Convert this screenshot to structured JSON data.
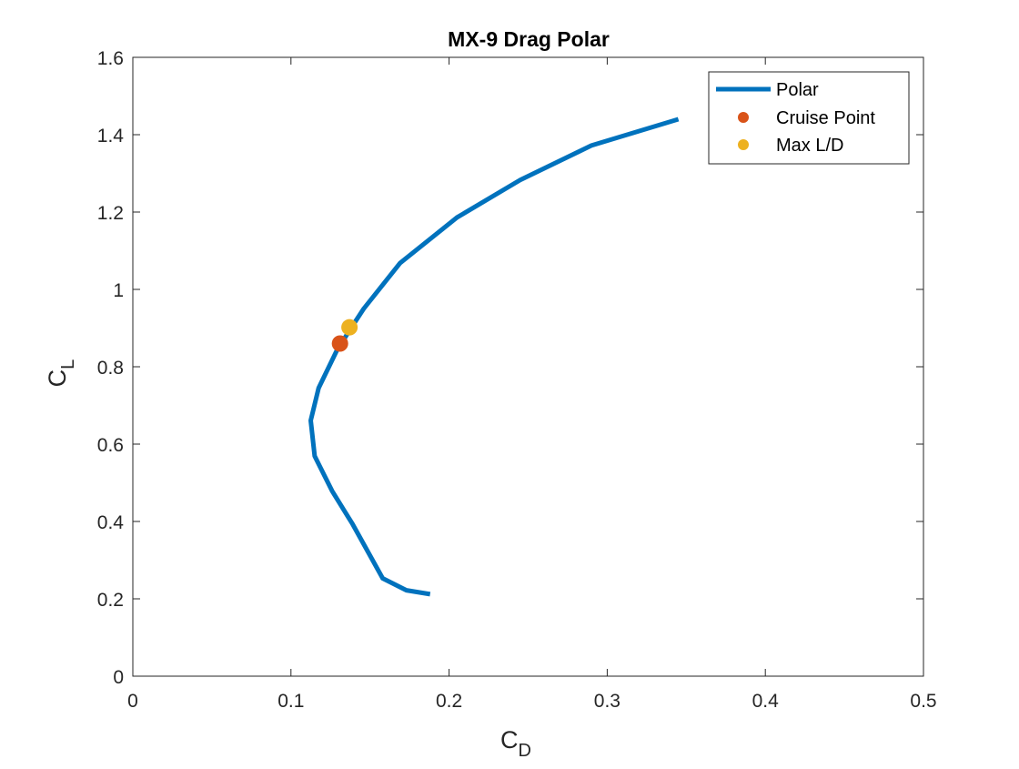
{
  "chart_data": {
    "type": "line",
    "title": "MX-9 Drag Polar",
    "xlabel": {
      "main": "C",
      "sub": "D"
    },
    "ylabel": {
      "main": "C",
      "sub": "L"
    },
    "xlim": [
      0,
      0.5
    ],
    "ylim": [
      0,
      1.6
    ],
    "xticks": [
      0,
      0.1,
      0.2,
      0.3,
      0.4,
      0.5
    ],
    "xtick_labels": [
      "0",
      "0.1",
      "0.2",
      "0.3",
      "0.4",
      "0.5"
    ],
    "yticks": [
      0,
      0.2,
      0.4,
      0.6,
      0.8,
      1.0,
      1.2,
      1.4,
      1.6
    ],
    "ytick_labels": [
      "0",
      "0.2",
      "0.4",
      "0.6",
      "0.8",
      "1",
      "1.2",
      "1.4",
      "1.6"
    ],
    "grid": false,
    "legend_position": "top-right",
    "series": [
      {
        "name": "Polar",
        "kind": "line",
        "color": "#0072BD",
        "x": [
          0.188,
          0.173,
          0.158,
          0.139,
          0.126,
          0.115,
          0.1125,
          0.1175,
          0.129,
          0.138,
          0.146,
          0.169,
          0.205,
          0.245,
          0.29,
          0.345
        ],
        "y": [
          0.212,
          0.222,
          0.253,
          0.393,
          0.479,
          0.569,
          0.661,
          0.745,
          0.842,
          0.9,
          0.95,
          1.068,
          1.186,
          1.283,
          1.372,
          1.44
        ]
      },
      {
        "name": "Cruise Point",
        "kind": "marker",
        "color": "#D95319",
        "x": [
          0.131
        ],
        "y": [
          0.86
        ]
      },
      {
        "name": "Max L/D",
        "kind": "marker",
        "color": "#EDB120",
        "x": [
          0.137
        ],
        "y": [
          0.902
        ]
      }
    ]
  }
}
